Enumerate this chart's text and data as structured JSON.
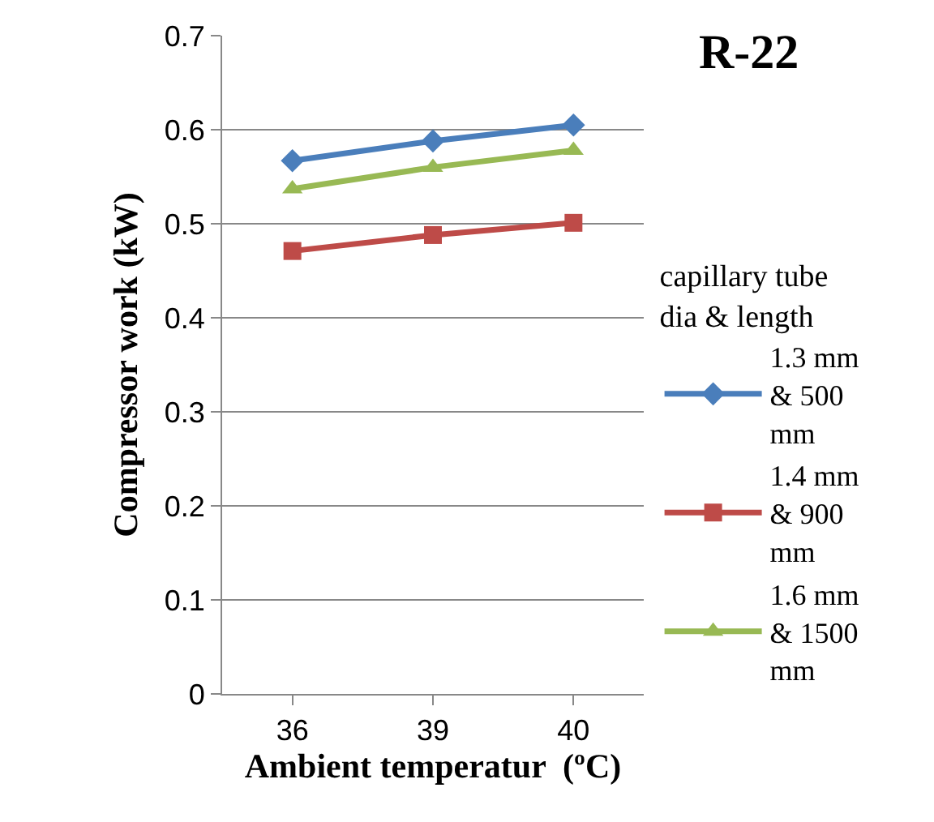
{
  "chart_data": {
    "type": "line",
    "title": "R-22",
    "legend_title": "capillary tube dia & length",
    "xlabel": "Ambient temperatur  (ºC)",
    "ylabel": "Compressor work (kW)",
    "categories": [
      "36",
      "39",
      "40"
    ],
    "ylim": [
      0,
      0.7
    ],
    "yticks": [
      0,
      0.1,
      0.2,
      0.3,
      0.4,
      0.5,
      0.6,
      0.7
    ],
    "grid": "y",
    "legend": "right",
    "line_style": "solid",
    "series": [
      {
        "name": "1.3 mm & 500 mm",
        "color": "#4a7ebb",
        "marker": "diamond",
        "values": [
          0.567,
          0.588,
          0.605
        ]
      },
      {
        "name": "1.4 mm & 900 mm",
        "color": "#be4b48",
        "marker": "square",
        "values": [
          0.471,
          0.488,
          0.501
        ]
      },
      {
        "name": "1.6 mm & 1500 mm",
        "color": "#98b954",
        "marker": "triangle",
        "values": [
          0.537,
          0.56,
          0.578
        ]
      }
    ]
  }
}
